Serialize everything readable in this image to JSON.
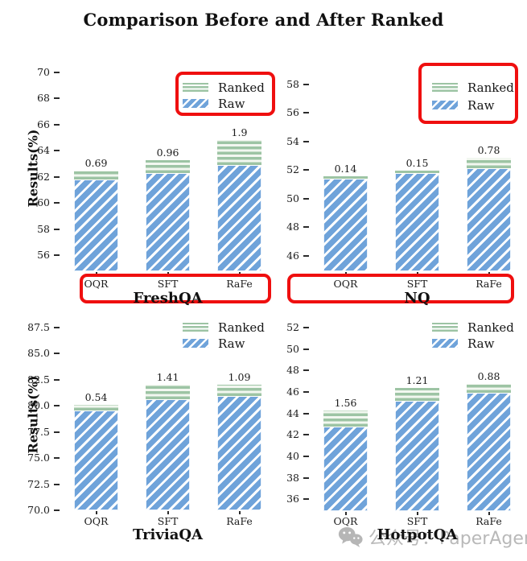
{
  "title": "Comparison Before and After Ranked",
  "watermark": {
    "icon": "wechat-icon",
    "text": "公众号：PaperAgent"
  },
  "colors": {
    "raw_blue": "#6fa3da",
    "ranked_green": "#9dc4a4",
    "highlight_red": "#ef0f0f",
    "text": "#111111",
    "watermark_gray": "#b9b9b9"
  },
  "chart_data": [
    {
      "type": "bar",
      "stacked": true,
      "dataset": "FreshQA",
      "ylabel": "Results(%)",
      "categories": [
        "OQR",
        "SFT",
        "RaFe"
      ],
      "series": [
        {
          "name": "Raw",
          "values": [
            61.8,
            62.3,
            62.9
          ]
        },
        {
          "name": "Ranked",
          "values": [
            0.69,
            0.96,
            1.9
          ]
        }
      ],
      "gain_labels": [
        "0.69",
        "0.96",
        "1.9"
      ],
      "yticks": {
        "values": [
          56,
          58,
          60,
          62,
          64,
          66,
          68,
          70
        ],
        "labels": [
          "56",
          "58",
          "60",
          "62",
          "64",
          "66",
          "68",
          "70"
        ]
      },
      "ylim": [
        54.8,
        70.6
      ],
      "legend": [
        "Ranked",
        "Raw"
      ],
      "legend_position": "upper right",
      "grid": false,
      "red_box_around_legend": true,
      "red_box_around_xticklabels": true
    },
    {
      "type": "bar",
      "stacked": true,
      "dataset": "NQ",
      "ylabel": null,
      "categories": [
        "OQR",
        "SFT",
        "RaFe"
      ],
      "series": [
        {
          "name": "Raw",
          "values": [
            51.4,
            51.79,
            52.1
          ]
        },
        {
          "name": "Ranked",
          "values": [
            0.14,
            0.15,
            0.78
          ]
        }
      ],
      "gain_labels": [
        "0.14",
        "0.15",
        "0.78"
      ],
      "yticks": {
        "values": [
          46,
          48,
          50,
          52,
          54,
          56,
          58
        ],
        "labels": [
          "46",
          "48",
          "50",
          "52",
          "54",
          "56",
          "58"
        ]
      },
      "ylim": [
        44.9,
        59.4
      ],
      "legend": [
        "Ranked",
        "Raw"
      ],
      "legend_position": "upper right",
      "grid": false,
      "red_box_around_legend": true,
      "red_box_around_xticklabels": true
    },
    {
      "type": "bar",
      "stacked": true,
      "dataset": "TriviaQA",
      "ylabel": "Results(%)",
      "categories": [
        "OQR",
        "SFT",
        "RaFe"
      ],
      "series": [
        {
          "name": "Raw",
          "values": [
            79.55,
            80.6,
            80.9
          ]
        },
        {
          "name": "Ranked",
          "values": [
            0.54,
            1.41,
            1.09
          ]
        }
      ],
      "gain_labels": [
        "0.54",
        "1.41",
        "1.09"
      ],
      "yticks": {
        "values": [
          70,
          72.5,
          75,
          77.5,
          80,
          82.5,
          85,
          87.5
        ],
        "labels": [
          "70.0",
          "72.5",
          "75.0",
          "77.5",
          "80.0",
          "82.5",
          "85.0",
          "87.5"
        ]
      },
      "ylim": [
        70.0,
        88.4
      ],
      "legend": [
        "Ranked",
        "Raw"
      ],
      "legend_position": "upper right",
      "grid": false,
      "red_box_around_legend": false,
      "red_box_around_xticklabels": false
    },
    {
      "type": "bar",
      "stacked": true,
      "dataset": "HotpotQA",
      "ylabel": null,
      "categories": [
        "OQR",
        "SFT",
        "RaFe"
      ],
      "series": [
        {
          "name": "Raw",
          "values": [
            42.75,
            45.15,
            45.9
          ]
        },
        {
          "name": "Ranked",
          "values": [
            1.56,
            1.21,
            0.88
          ]
        }
      ],
      "gain_labels": [
        "1.56",
        "1.21",
        "0.88"
      ],
      "yticks": {
        "values": [
          36,
          38,
          40,
          42,
          44,
          46,
          48,
          50,
          52
        ],
        "labels": [
          "36",
          "38",
          "40",
          "42",
          "44",
          "46",
          "48",
          "50",
          "52"
        ]
      },
      "ylim": [
        34.9,
        52.9
      ],
      "legend": [
        "Ranked",
        "Raw"
      ],
      "legend_position": "upper right",
      "grid": false,
      "red_box_around_legend": false,
      "red_box_around_xticklabels": false
    }
  ]
}
